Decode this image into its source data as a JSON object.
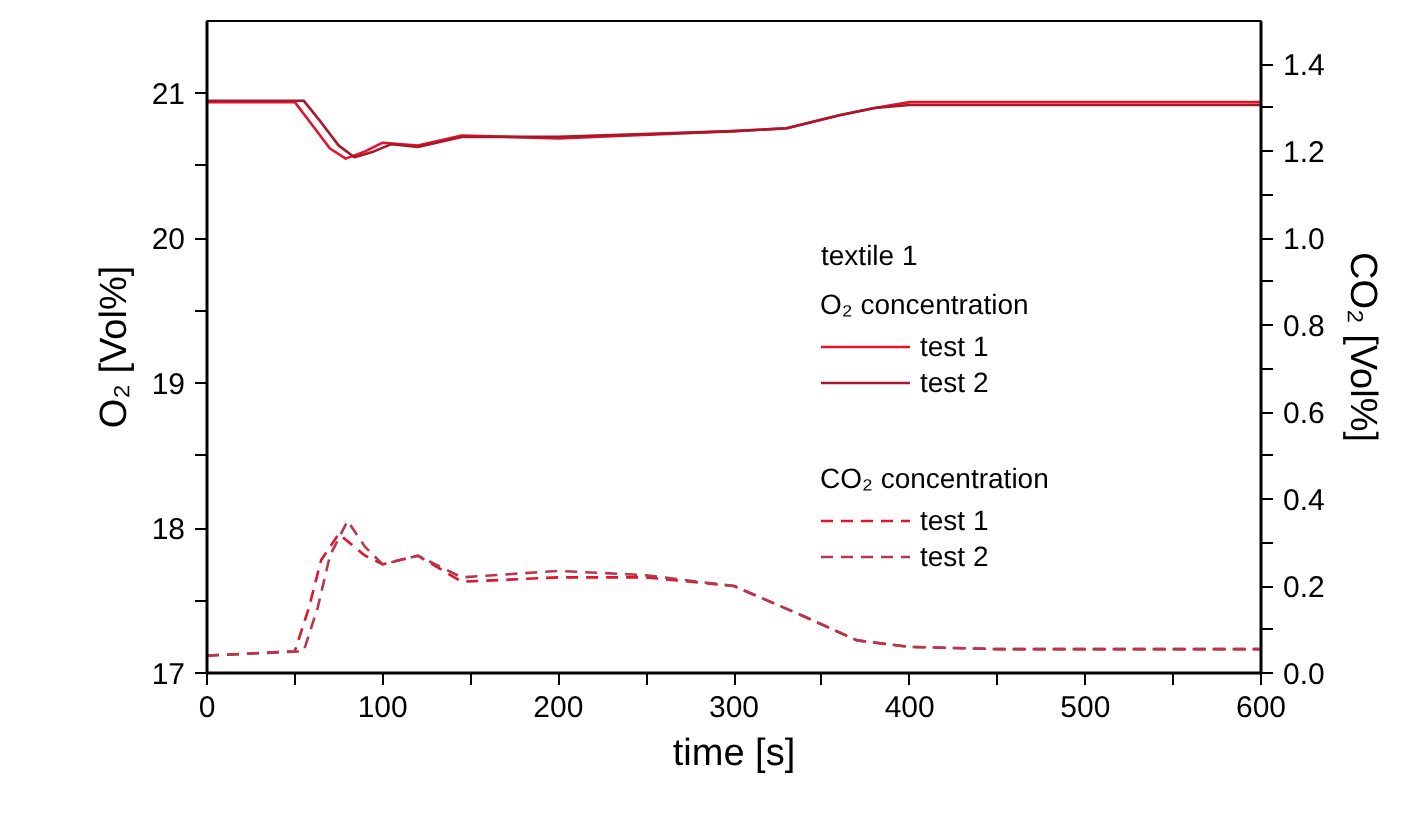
{
  "chart_data": {
    "type": "line",
    "xlabel": "time [s]",
    "ylabel": "O₂ [Vol%]",
    "y2label": "CO₂ [Vol%]",
    "legend_title": "textile 1",
    "annotations": [
      "O₂ concentration",
      "CO₂ concentration"
    ],
    "xlim": [
      0,
      600
    ],
    "xticks": [
      0,
      {
        "value": 50,
        "label": null
      },
      100,
      {
        "value": 150,
        "label": null
      },
      200,
      {
        "value": 250,
        "label": null
      },
      300,
      {
        "value": 350,
        "label": null
      },
      400,
      {
        "value": 450,
        "label": null
      },
      500,
      {
        "value": 550,
        "label": null
      },
      600
    ],
    "ylim": [
      17,
      21.5
    ],
    "yticks": [
      17,
      {
        "value": 17.5,
        "label": null
      },
      18,
      {
        "value": 18.5,
        "label": null
      },
      19,
      {
        "value": 19.5,
        "label": null
      },
      20,
      {
        "value": 20.5,
        "label": null
      },
      21
    ],
    "y2lim": [
      0,
      1.5
    ],
    "y2ticks": [
      {
        "value": 0,
        "label": "0.0"
      },
      {
        "value": 0.1,
        "label": null
      },
      0.2,
      {
        "value": 0.3,
        "label": null
      },
      0.4,
      {
        "value": 0.5,
        "label": null
      },
      0.6,
      {
        "value": 0.7,
        "label": null
      },
      0.8,
      {
        "value": 0.9,
        "label": null
      },
      {
        "value": 1,
        "label": "1.0"
      },
      {
        "value": 1.1,
        "label": null
      },
      1.2,
      {
        "value": 1.3,
        "label": null
      },
      1.4
    ],
    "legend": "right",
    "grid": false,
    "marker": "none",
    "series": [
      {
        "name": "test 1",
        "color": "#e3122d",
        "line_style": "solid",
        "x": [
          0,
          50,
          60,
          70,
          79,
          90,
          100,
          120,
          145,
          200,
          300,
          330,
          360,
          380,
          400,
          450,
          500,
          600
        ],
        "values": [
          20.94,
          20.94,
          20.78,
          20.62,
          20.55,
          20.6,
          20.66,
          20.64,
          20.71,
          20.69,
          20.74,
          20.76,
          20.85,
          20.9,
          20.94,
          20.94,
          20.94,
          20.94
        ]
      },
      {
        "name": "test 2",
        "color": "#a8182a",
        "line_style": "solid",
        "x": [
          0,
          55,
          65,
          75,
          84,
          95,
          105,
          120,
          145,
          200,
          300,
          330,
          360,
          380,
          400,
          450,
          500,
          600
        ],
        "values": [
          20.95,
          20.95,
          20.8,
          20.64,
          20.56,
          20.6,
          20.65,
          20.63,
          20.7,
          20.7,
          20.74,
          20.76,
          20.85,
          20.9,
          20.92,
          20.92,
          20.92,
          20.92
        ]
      },
      {
        "name": "test 1",
        "color": "#e3122d",
        "line_style": "dashed",
        "axis": "y2",
        "x": [
          0,
          50,
          58,
          65,
          75,
          90,
          100,
          120,
          145,
          200,
          250,
          300,
          340,
          370,
          400,
          450,
          500,
          600
        ],
        "values": [
          0.04,
          0.05,
          0.15,
          0.26,
          0.32,
          0.27,
          0.25,
          0.27,
          0.21,
          0.22,
          0.22,
          0.2,
          0.13,
          0.075,
          0.06,
          0.055,
          0.055,
          0.055
        ]
      },
      {
        "name": "test 2",
        "color": "#b33a4a",
        "line_style": "dashed",
        "axis": "y2",
        "x": [
          0,
          55,
          63,
          70,
          80,
          90,
          100,
          120,
          145,
          200,
          250,
          300,
          340,
          370,
          400,
          450,
          500,
          600
        ],
        "values": [
          0.04,
          0.05,
          0.15,
          0.27,
          0.35,
          0.29,
          0.25,
          0.27,
          0.22,
          0.235,
          0.225,
          0.2,
          0.13,
          0.075,
          0.06,
          0.055,
          0.055,
          0.055
        ]
      }
    ]
  }
}
